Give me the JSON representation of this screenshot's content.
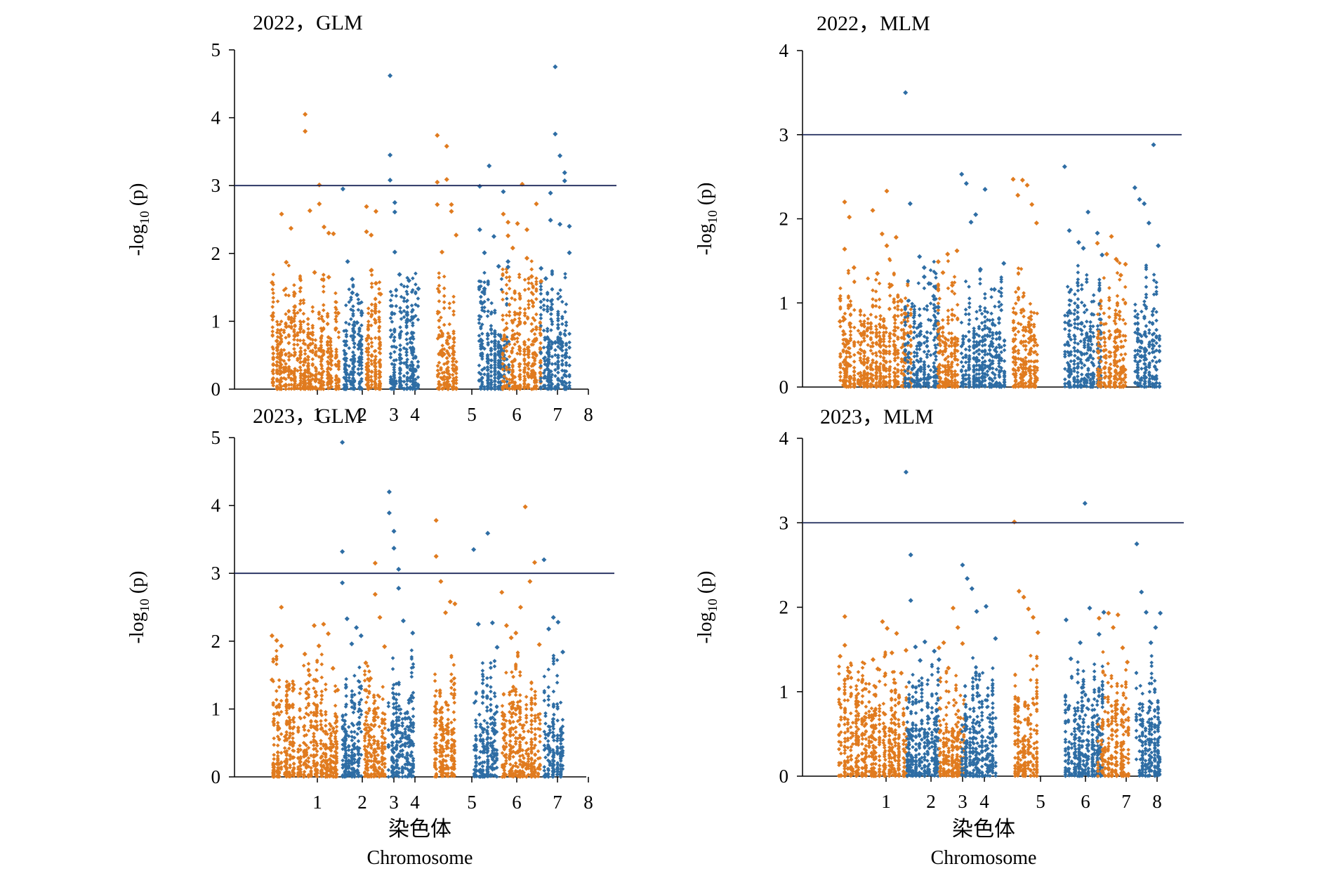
{
  "chart_data": [
    {
      "type": "scatter",
      "title": "2022，GLM",
      "ylabel": "-log10 (p)",
      "ylim": [
        0,
        5
      ],
      "yticks": [
        0,
        1,
        2,
        3,
        4,
        5
      ],
      "threshold": 3,
      "x_tick_labels": [
        "1",
        "2",
        "3",
        "4",
        "5",
        "6",
        "7",
        "8"
      ],
      "series": [
        {
          "color": "#E07B1F",
          "x": [
            0.5,
            0.5,
            0.6,
            0.6,
            0.7,
            0.8,
            0.8,
            0.9,
            1.2,
            1.2,
            1.3,
            1.4,
            1.5,
            1.5,
            1.6,
            1.7,
            1.7,
            1.8,
            1.9
          ],
          "y": [
            1.57,
            1.08,
            0.71,
            0.35,
            2.58,
            1.87,
            0.92,
            2.37,
            4.05,
            3.8,
            2.63,
            1.72,
            3.01,
            2.73,
            2.39,
            1.65,
            2.3,
            2.29,
            1.12
          ]
        },
        {
          "color": "#2E6DA4",
          "x": [
            2.0,
            2.1,
            2.2,
            2.2,
            2.3,
            2.3,
            2.4
          ],
          "y": [
            2.95,
            1.88,
            1.62,
            1.42,
            1.39,
            0.98,
            1.12
          ]
        },
        {
          "color": "#E07B1F",
          "x": [
            2.5,
            2.5,
            2.6,
            2.6,
            2.7,
            2.7,
            2.8
          ],
          "y": [
            2.69,
            2.32,
            2.27,
            1.75,
            2.62,
            1.56,
            1.4
          ]
        },
        {
          "color": "#2E6DA4",
          "x": [
            3.0,
            3.0,
            3.0,
            3.1,
            3.1,
            3.1,
            3.2,
            3.4,
            3.6
          ],
          "y": [
            4.62,
            3.45,
            3.08,
            2.75,
            2.61,
            2.02,
            1.69,
            1.6,
            1.48
          ]
        },
        {
          "color": "#E07B1F",
          "x": [
            4.0,
            4.0,
            4.0,
            4.1,
            4.2,
            4.2,
            4.3,
            4.3,
            4.4
          ],
          "y": [
            3.74,
            3.05,
            2.72,
            2.02,
            3.58,
            3.09,
            2.72,
            2.62,
            2.27
          ]
        },
        {
          "color": "#2E6DA4",
          "x": [
            4.9,
            4.9,
            5.0,
            5.0,
            5.1,
            5.2,
            5.3,
            5.4,
            5.5,
            5.5
          ],
          "y": [
            2.99,
            2.35,
            2.01,
            1.48,
            3.29,
            2.25,
            1.81,
            2.91,
            1.88,
            1.8
          ]
        },
        {
          "color": "#E07B1F",
          "x": [
            5.4,
            5.5,
            5.5,
            5.6,
            5.7,
            5.8,
            5.9,
            5.9,
            6.0,
            6.1,
            6.2
          ],
          "y": [
            2.58,
            2.46,
            2.26,
            2.08,
            2.44,
            3.02,
            2.35,
            1.93,
            1.66,
            2.73,
            1.59
          ]
        },
        {
          "color": "#2E6DA4",
          "x": [
            6.2,
            6.3,
            6.4,
            6.4,
            6.5,
            6.5,
            6.6,
            6.6,
            6.7,
            6.7,
            6.8,
            6.8
          ],
          "y": [
            1.78,
            1.63,
            2.89,
            2.49,
            4.75,
            3.76,
            3.44,
            2.43,
            3.19,
            3.07,
            2.4,
            2.01
          ]
        }
      ]
    },
    {
      "type": "scatter",
      "title": "2022，MLM",
      "ylabel": "-log10 (p)",
      "ylim": [
        0,
        4
      ],
      "yticks": [
        0,
        1,
        2,
        3,
        4
      ],
      "threshold": 3,
      "x_tick_labels": [],
      "series": [
        {
          "color": "#E07B1F",
          "x": [
            0.5,
            0.5,
            0.6,
            0.6,
            0.7,
            0.8,
            1.2,
            1.3,
            1.4,
            1.5,
            1.5,
            1.6,
            1.7,
            1.8,
            1.9,
            2.0
          ],
          "y": [
            1.05,
            0.78,
            2.2,
            1.64,
            2.02,
            1.42,
            2.1,
            1.35,
            1.82,
            2.33,
            1.68,
            1.21,
            1.78,
            1.03,
            0.87,
            0.72
          ]
        },
        {
          "color": "#2E6DA4",
          "x": [
            1.9,
            2.0,
            2.2,
            2.3,
            2.3,
            2.4,
            2.5,
            2.6
          ],
          "y": [
            3.5,
            2.18,
            1.55,
            1.42,
            1.31,
            1.23,
            1.08,
            0.95
          ]
        },
        {
          "color": "#E07B1F",
          "x": [
            2.6,
            2.7,
            2.8,
            2.9,
            3.0
          ],
          "y": [
            1.49,
            1.36,
            1.58,
            1.21,
            1.62
          ]
        },
        {
          "color": "#2E6DA4",
          "x": [
            3.1,
            3.2,
            3.3,
            3.4,
            3.5,
            3.6,
            3.8,
            4.0
          ],
          "y": [
            2.53,
            2.42,
            1.96,
            2.05,
            1.4,
            2.35,
            1.16,
            1.47
          ]
        },
        {
          "color": "#E07B1F",
          "x": [
            4.2,
            4.3,
            4.4,
            4.5,
            4.6,
            4.7
          ],
          "y": [
            2.47,
            2.28,
            2.46,
            2.4,
            2.17,
            1.95
          ]
        },
        {
          "color": "#2E6DA4",
          "x": [
            5.3,
            5.4,
            5.6,
            5.7,
            5.8,
            6.0,
            6.1
          ],
          "y": [
            2.62,
            1.86,
            1.72,
            1.65,
            2.08,
            1.83,
            1.57
          ]
        },
        {
          "color": "#E07B1F",
          "x": [
            6.0,
            6.2,
            6.3,
            6.4,
            6.5,
            6.6
          ],
          "y": [
            1.71,
            1.58,
            1.79,
            1.52,
            1.33,
            1.46
          ]
        },
        {
          "color": "#2E6DA4",
          "x": [
            6.8,
            6.9,
            7.0,
            7.1,
            7.2,
            7.3
          ],
          "y": [
            2.37,
            2.23,
            2.18,
            1.95,
            2.88,
            1.68
          ]
        }
      ]
    },
    {
      "type": "scatter",
      "title": "2023，GLM",
      "ylabel": "-log10 (p)",
      "ylim": [
        0,
        5
      ],
      "yticks": [
        0,
        1,
        2,
        3,
        4,
        5
      ],
      "threshold": 3,
      "x_tick_labels": [
        "1",
        "2",
        "3",
        "4",
        "5",
        "6",
        "7",
        "8"
      ],
      "series": [
        {
          "color": "#E07B1F",
          "x": [
            0.5,
            0.5,
            0.6,
            0.6,
            0.7,
            0.7,
            1.2,
            1.3,
            1.4,
            1.5,
            1.6,
            1.7,
            1.8,
            1.9
          ],
          "y": [
            2.08,
            1.43,
            2.01,
            1.03,
            2.5,
            1.93,
            1.81,
            1.5,
            2.23,
            1.93,
            2.25,
            2.11,
            1.6,
            1.28
          ]
        },
        {
          "color": "#2E6DA4",
          "x": [
            2.0,
            2.0,
            2.0,
            2.1,
            2.2,
            2.3,
            2.4
          ],
          "y": [
            4.93,
            3.32,
            2.86,
            2.33,
            1.96,
            2.2,
            2.08
          ]
        },
        {
          "color": "#E07B1F",
          "x": [
            2.5,
            2.6,
            2.7,
            2.7,
            2.8,
            2.9
          ],
          "y": [
            1.68,
            1.45,
            3.15,
            2.69,
            2.35,
            1.92
          ]
        },
        {
          "color": "#2E6DA4",
          "x": [
            3.0,
            3.0,
            3.1,
            3.1,
            3.2,
            3.2,
            3.3,
            3.5
          ],
          "y": [
            4.2,
            3.89,
            3.62,
            3.37,
            3.06,
            2.78,
            2.3,
            2.12
          ]
        },
        {
          "color": "#E07B1F",
          "x": [
            4.0,
            4.0,
            4.1,
            4.2,
            4.3,
            4.4
          ],
          "y": [
            3.78,
            3.25,
            2.88,
            2.42,
            2.58,
            2.55
          ]
        },
        {
          "color": "#2E6DA4",
          "x": [
            4.8,
            4.9,
            5.1,
            5.2,
            5.3
          ],
          "y": [
            3.35,
            2.25,
            3.59,
            2.27,
            1.91
          ]
        },
        {
          "color": "#E07B1F",
          "x": [
            5.4,
            5.5,
            5.6,
            5.7,
            5.8,
            5.9,
            6.0,
            6.1,
            6.2
          ],
          "y": [
            2.72,
            2.23,
            2.05,
            2.12,
            2.5,
            3.98,
            2.88,
            3.16,
            1.95
          ]
        },
        {
          "color": "#2E6DA4",
          "x": [
            6.3,
            6.4,
            6.5,
            6.6,
            6.7
          ],
          "y": [
            3.2,
            2.18,
            2.35,
            2.28,
            1.84
          ]
        }
      ]
    },
    {
      "type": "scatter",
      "title": "2023，MLM",
      "ylabel": "-log10 (p)",
      "ylim": [
        0,
        4
      ],
      "yticks": [
        0,
        1,
        2,
        3,
        4
      ],
      "threshold": 3,
      "x_tick_labels": [
        "1",
        "2",
        "3",
        "4",
        "5",
        "6",
        "7",
        "8"
      ],
      "series": [
        {
          "color": "#E07B1F",
          "x": [
            0.5,
            0.5,
            0.6,
            0.6,
            0.7,
            1.2,
            1.3,
            1.4,
            1.5,
            1.6,
            1.7,
            1.8,
            1.9
          ],
          "y": [
            1.42,
            0.85,
            1.89,
            1.55,
            1.23,
            1.38,
            1.27,
            1.83,
            1.75,
            1.46,
            1.69,
            1.22,
            1.49
          ]
        },
        {
          "color": "#2E6DA4",
          "x": [
            1.9,
            2.0,
            2.0,
            2.1,
            2.2,
            2.3,
            2.5,
            2.6
          ],
          "y": [
            3.6,
            2.62,
            2.08,
            1.53,
            1.37,
            1.59,
            1.48,
            1.38
          ]
        },
        {
          "color": "#E07B1F",
          "x": [
            2.6,
            2.7,
            2.8,
            2.9,
            3.0,
            3.1
          ],
          "y": [
            1.52,
            1.58,
            1.28,
            1.99,
            1.76,
            1.57
          ]
        },
        {
          "color": "#2E6DA4",
          "x": [
            3.1,
            3.2,
            3.3,
            3.4,
            3.6,
            3.8
          ],
          "y": [
            2.5,
            2.34,
            2.22,
            1.95,
            2.01,
            1.63
          ]
        },
        {
          "color": "#E07B1F",
          "x": [
            4.2,
            4.3,
            4.4,
            4.5,
            4.6,
            4.7
          ],
          "y": [
            3.01,
            2.19,
            2.12,
            1.98,
            1.88,
            1.7
          ]
        },
        {
          "color": "#2E6DA4",
          "x": [
            5.3,
            5.4,
            5.6,
            5.7,
            5.8,
            6.0,
            6.1
          ],
          "y": [
            1.85,
            1.39,
            1.58,
            3.23,
            1.99,
            1.68,
            1.94
          ]
        },
        {
          "color": "#E07B1F",
          "x": [
            6.0,
            6.2,
            6.3,
            6.4,
            6.5,
            6.6
          ],
          "y": [
            1.87,
            1.93,
            1.76,
            1.91,
            1.52,
            1.35
          ]
        },
        {
          "color": "#2E6DA4",
          "x": [
            6.8,
            6.9,
            7.0,
            7.1,
            7.2,
            7.3
          ],
          "y": [
            2.75,
            2.18,
            1.94,
            1.58,
            1.76,
            1.93
          ]
        }
      ]
    }
  ],
  "figure": {
    "xlabel_zh": "染色体",
    "xlabel_en": "Chromosome",
    "colors": {
      "odd": "#E07B1F",
      "even": "#2E6DA4",
      "threshold_line": "#1F2A5C",
      "axis": "#000000"
    }
  }
}
